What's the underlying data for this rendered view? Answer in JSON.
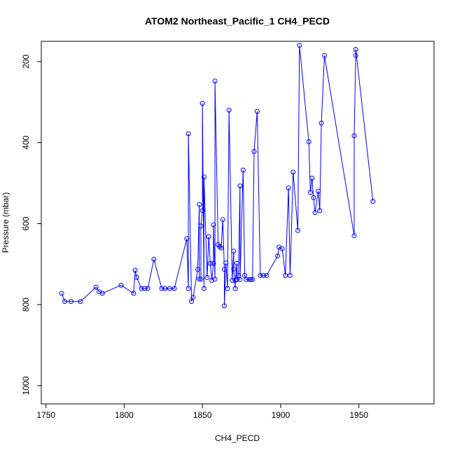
{
  "chart_data": {
    "type": "scatter",
    "title": "ATOM2 Northeast_Pacific_1 CH4_PECD",
    "xlabel": "CH4_PECD",
    "ylabel": "Pressure (mbar)",
    "xlim": [
      1747,
      1998
    ],
    "ylim": [
      1045,
      150
    ],
    "y_axis_inverted": true,
    "grid": false,
    "legend": "none",
    "x_ticks": [
      1750,
      1800,
      1850,
      1900,
      1950
    ],
    "y_ticks": [
      200,
      400,
      600,
      800,
      1000
    ],
    "colors": {
      "series": "#0000ff",
      "axes": "#000000",
      "background": "#ffffff"
    },
    "series": [
      {
        "name": "",
        "x": [
          1760,
          1762,
          1766,
          1772,
          1782,
          1784,
          1786,
          1798,
          1806,
          1807,
          1808,
          1811,
          1813,
          1815,
          1819,
          1824,
          1826,
          1829,
          1832,
          1840,
          1841,
          1841,
          1843,
          1844,
          1847,
          1848,
          1848,
          1849,
          1849,
          1850,
          1850,
          1851,
          1851,
          1853,
          1854,
          1855,
          1856,
          1857,
          1857,
          1858,
          1858,
          1860,
          1861,
          1862,
          1863,
          1864,
          1864,
          1865,
          1866,
          1867,
          1869,
          1870,
          1870,
          1871,
          1871,
          1872,
          1872,
          1873,
          1874,
          1874,
          1876,
          1877,
          1878,
          1880,
          1881,
          1882,
          1883,
          1885,
          1887,
          1889,
          1891,
          1898,
          1899,
          1901,
          1903,
          1905,
          1906,
          1908,
          1911,
          1912,
          1918,
          1919,
          1920,
          1921,
          1922,
          1924,
          1925,
          1926,
          1928,
          1947,
          1947,
          1948,
          1948,
          1959
        ],
        "y": [
          772,
          792,
          792,
          792,
          757,
          768,
          772,
          752,
          772,
          715,
          733,
          760,
          760,
          760,
          688,
          760,
          760,
          760,
          760,
          637,
          760,
          378,
          792,
          782,
          713,
          553,
          737,
          737,
          606,
          568,
          303,
          760,
          485,
          733,
          632,
          698,
          740,
          698,
          603,
          737,
          248,
          652,
          657,
          660,
          590,
          713,
          803,
          697,
          760,
          320,
          740,
          668,
          712,
          760,
          740,
          698,
          738,
          728,
          507,
          738,
          468,
          728,
          738,
          738,
          738,
          738,
          422,
          323,
          728,
          728,
          728,
          680,
          658,
          662,
          728,
          512,
          728,
          473,
          617,
          160,
          398,
          523,
          488,
          536,
          573,
          520,
          568,
          352,
          185,
          630,
          383,
          185,
          170,
          545
        ]
      }
    ]
  }
}
